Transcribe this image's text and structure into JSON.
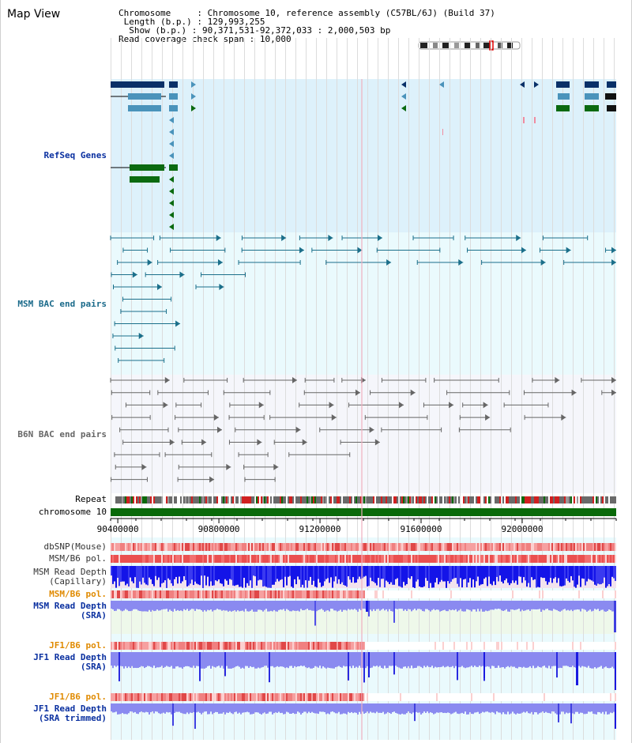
{
  "title": "Map View",
  "info": {
    "chromosome_key": "Chromosome    ",
    "chromosome_value": "Chromosome 10, reference assembly (C57BL/6J) (Build 37)",
    "length_key": " Length (b.p.)",
    "length_value": "129,993,255",
    "show_key": "  Show (b.p.)",
    "show_value": "90,371,531-92,372,033 : 2,000,503 bp",
    "coverage_key": "Read coverage check span",
    "coverage_value": "10,000"
  },
  "tracks": {
    "refseq": "RefSeq Genes",
    "msm_bac": "MSM BAC end pairs",
    "b6n_bac": "B6N BAC end pairs",
    "repeat": "Repeat",
    "chromosome": "chromosome 10",
    "dbsnp": "dbSNP(Mouse)",
    "msm_pol1": "MSM/B6 pol.",
    "msm_depth_cap_1": "MSM Read Depth",
    "msm_depth_cap_2": "(Capillary)",
    "msm_pol2": "MSM/B6 pol.",
    "msm_depth_sra_1": "MSM Read Depth",
    "msm_depth_sra_2": "(SRA)",
    "jf1_pol1": "JF1/B6 pol.",
    "jf1_depth_1": "JF1 Read Depth",
    "jf1_depth_2": "(SRA)",
    "jf1_pol2": "JF1/B6 pol.",
    "jf1_trim_1": "JF1 Read Depth",
    "jf1_trim_2": "(SRA trimmed)"
  },
  "ruler": {
    "ticks": [
      "90400000",
      "90800000",
      "91200000",
      "91600000",
      "92000000"
    ],
    "tick_values": [
      90400000,
      90800000,
      91200000,
      91600000,
      92000000
    ],
    "range": [
      90371531,
      92372033
    ]
  },
  "colors": {
    "refseq_bg": "#ddf1fb",
    "msm_bg": "#eafafd",
    "b6n_bg": "#f5f6fb",
    "gene_dark": "#0a3068",
    "gene_mid": "#4a93bb",
    "gene_green": "#0b6a10",
    "bac_msm": "#1b6f8a",
    "bac_b6n": "#666666",
    "chrom_bar": "#0a6a0a",
    "pol_red": "#e04040",
    "depth_blue": "#1616e0",
    "depth_light": "#8a8af0",
    "label_blue": "#0a30a0",
    "label_teal": "#1a6a8a",
    "label_orange": "#e08a00"
  }
}
